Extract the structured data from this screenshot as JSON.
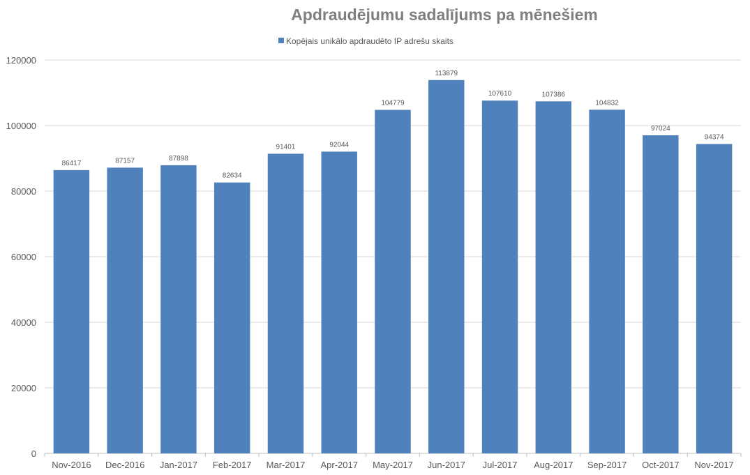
{
  "chart_data": {
    "type": "bar",
    "title": "Apdraudējumu sadalījums pa mēnešiem",
    "legend": {
      "position": "top",
      "entries": [
        "Kopējais unikālo apdraudēto IP adrešu skaits"
      ]
    },
    "categories": [
      "Nov-2016",
      "Dec-2016",
      "Jan-2017",
      "Feb-2017",
      "Mar-2017",
      "Apr-2017",
      "May-2017",
      "Jun-2017",
      "Jul-2017",
      "Aug-2017",
      "Sep-2017",
      "Oct-2017",
      "Nov-2017"
    ],
    "series": [
      {
        "name": "Kopējais unikālo apdraudēto IP adrešu skaits",
        "values": [
          86417,
          87157,
          87898,
          82634,
          91401,
          92044,
          104779,
          113879,
          107610,
          107386,
          104832,
          97024,
          94374
        ],
        "color": "#4f81bd"
      }
    ],
    "ylim": [
      0,
      120000
    ],
    "yticks": [
      0,
      20000,
      40000,
      60000,
      80000,
      100000,
      120000
    ],
    "grid": true,
    "data_labels": true,
    "xlabel": "",
    "ylabel": ""
  }
}
